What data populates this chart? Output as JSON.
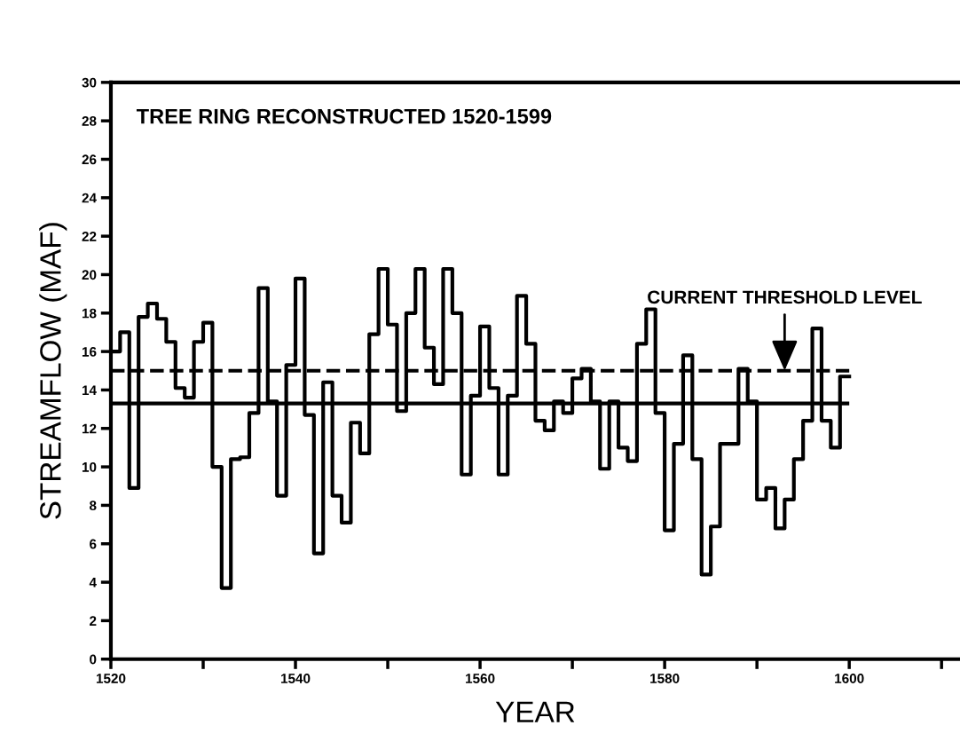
{
  "chart_data": {
    "type": "step",
    "title": "TREE RING RECONSTRUCTED 1520-1599",
    "xlabel": "YEAR",
    "ylabel": "STREAMFLOW (MAF)",
    "x": [
      1520,
      1521,
      1522,
      1523,
      1524,
      1525,
      1526,
      1527,
      1528,
      1529,
      1530,
      1531,
      1532,
      1533,
      1534,
      1535,
      1536,
      1537,
      1538,
      1539,
      1540,
      1541,
      1542,
      1543,
      1544,
      1545,
      1546,
      1547,
      1548,
      1549,
      1550,
      1551,
      1552,
      1553,
      1554,
      1555,
      1556,
      1557,
      1558,
      1559,
      1560,
      1561,
      1562,
      1563,
      1564,
      1565,
      1566,
      1567,
      1568,
      1569,
      1570,
      1571,
      1572,
      1573,
      1574,
      1575,
      1576,
      1577,
      1578,
      1579,
      1580,
      1581,
      1582,
      1583,
      1584,
      1585,
      1586,
      1587,
      1588,
      1589,
      1590,
      1591,
      1592,
      1593,
      1594,
      1595,
      1596,
      1597,
      1598,
      1599,
      1600
    ],
    "series": [
      {
        "color": "#000000",
        "values": [
          16,
          17,
          8.9,
          17.8,
          18.5,
          17.7,
          16.5,
          14.1,
          13.6,
          16.5,
          17.5,
          10,
          3.7,
          10.4,
          10.5,
          12.8,
          19.3,
          13.4,
          8.5,
          15.3,
          19.8,
          12.7,
          5.5,
          14.4,
          8.5,
          7.1,
          12.3,
          10.7,
          16.9,
          20.3,
          17.4,
          12.9,
          18,
          20.3,
          16.2,
          14.3,
          20.3,
          18,
          9.6,
          13.7,
          17.3,
          14.1,
          9.6,
          13.7,
          18.9,
          16.4,
          12.4,
          11.9,
          13.4,
          12.8,
          14.6,
          15.1,
          13.4,
          9.9,
          13.4,
          11,
          10.3,
          16.4,
          18.2,
          12.8,
          6.7,
          11.2,
          15.8,
          10.4,
          4.4,
          6.9,
          11.2,
          11.2,
          15.1,
          13.4,
          8.3,
          8.9,
          6.8,
          8.3,
          10.4,
          12.4,
          17.2,
          12.4,
          11,
          14.7,
          14.7
        ]
      }
    ],
    "xlim": [
      1520,
      1612
    ],
    "ylim": [
      0,
      30
    ],
    "xticks": [
      1520,
      {
        "value": 1530,
        "label": null
      },
      1540,
      {
        "value": 1550,
        "label": null
      },
      1560,
      {
        "value": 1570,
        "label": null
      },
      1580,
      {
        "value": 1590,
        "label": null
      },
      1600,
      {
        "value": 1610,
        "label": null
      }
    ],
    "yticks": [
      0,
      2,
      4,
      6,
      8,
      10,
      12,
      14,
      16,
      18,
      20,
      22,
      24,
      26,
      28,
      30
    ],
    "ref_lines": [
      {
        "axis": "y",
        "value": 15,
        "label": null,
        "line_style": "dashed",
        "color": "#000000"
      },
      {
        "axis": "y",
        "value": 13.3,
        "label": null,
        "line_style": "solid",
        "color": "#000000"
      }
    ],
    "annotations": [
      {
        "text": "CURRENT THRESHOLD LEVEL",
        "x": 1593,
        "y": 15
      }
    ],
    "grid": false,
    "legend": false
  }
}
